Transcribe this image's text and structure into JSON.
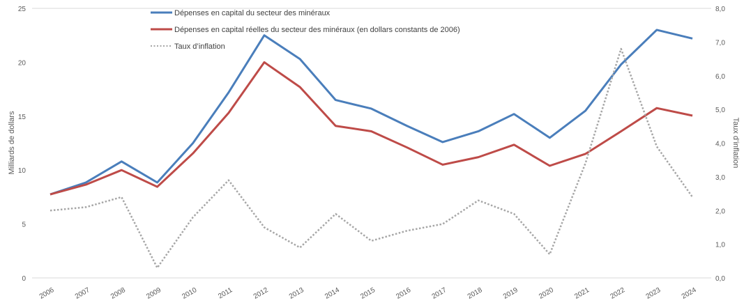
{
  "chart_data": {
    "type": "line",
    "categories": [
      "2006",
      "2007",
      "2008",
      "2009",
      "2010",
      "2011",
      "2012",
      "2013",
      "2014",
      "2015",
      "2016",
      "2017",
      "2018",
      "2019",
      "2020",
      "2021",
      "2022",
      "2023",
      "2024"
    ],
    "ylabel": "Milliards de dollars",
    "y2label": "Taux d’inflation",
    "ylim": [
      0,
      25
    ],
    "y2lim": [
      0,
      8
    ],
    "yticks": [
      "0",
      "5",
      "10",
      "15",
      "20",
      "25"
    ],
    "y2ticks": [
      "0,0",
      "1,0",
      "2,0",
      "3,0",
      "4,0",
      "5,0",
      "6,0",
      "7,0",
      "8,0"
    ],
    "grid": false,
    "legend_position": "top",
    "series": [
      {
        "name": "Dépenses en capital du secteur des minéraux",
        "axis": "left",
        "color": "#4a7ebb",
        "style": "solid",
        "values": [
          7.75,
          8.85,
          10.8,
          8.85,
          12.5,
          17.2,
          22.5,
          20.3,
          16.5,
          15.7,
          14.1,
          12.6,
          13.6,
          15.2,
          13.0,
          15.5,
          19.8,
          23.0,
          22.2
        ]
      },
      {
        "name": "Dépenses en capital réelles du secteur des minéraux (en dollars constants de 2006)",
        "axis": "left",
        "color": "#be4b48",
        "style": "solid",
        "values": [
          7.75,
          8.65,
          10.0,
          8.45,
          11.55,
          15.3,
          20.0,
          17.7,
          14.1,
          13.6,
          12.1,
          10.5,
          11.2,
          12.35,
          10.4,
          11.5,
          13.6,
          15.75,
          15.05
        ]
      },
      {
        "name": "Taux d’inflation",
        "axis": "right",
        "color": "#a6a6a6",
        "style": "dotted",
        "values": [
          2.0,
          2.1,
          2.4,
          0.3,
          1.8,
          2.9,
          1.5,
          0.9,
          1.9,
          1.1,
          1.4,
          1.6,
          2.3,
          1.9,
          0.7,
          3.4,
          6.8,
          3.9,
          2.4
        ]
      }
    ]
  }
}
